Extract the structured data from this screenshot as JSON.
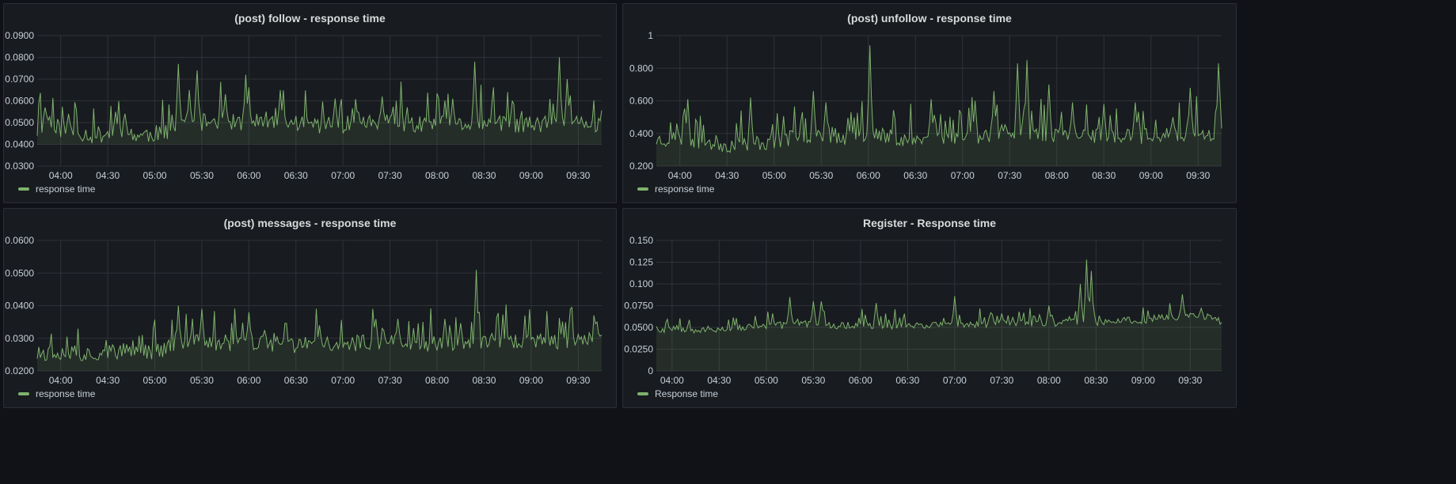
{
  "colors": {
    "series": "#7eb26d",
    "fill": "rgba(126,178,109,0.12)",
    "grid": "#2f3238"
  },
  "chart_data": [
    {
      "type": "line",
      "title": "(post) follow - response time",
      "legend": "response time",
      "time_ticks": [
        "04:00",
        "04:30",
        "05:00",
        "05:30",
        "06:00",
        "06:30",
        "07:00",
        "07:30",
        "08:00",
        "08:30",
        "09:00",
        "09:30"
      ],
      "time_range": [
        "03:45",
        "09:45"
      ],
      "y_ticks": [
        "0.0300",
        "0.0400",
        "0.0500",
        "0.0600",
        "0.0700",
        "0.0800",
        "0.0900"
      ],
      "ylim": [
        0.03,
        0.09
      ],
      "fill_baseline": 0.04,
      "series": [
        {
          "base": 0.046,
          "noise": 0.004,
          "seed": 11,
          "peaks": [
            [
              "03:50",
              0.057
            ],
            [
              "04:05",
              0.054
            ],
            [
              "04:35",
              0.055
            ],
            [
              "05:15",
              0.077
            ],
            [
              "05:22",
              0.065
            ],
            [
              "05:27",
              0.074
            ],
            [
              "05:45",
              0.063
            ],
            [
              "05:58",
              0.072
            ],
            [
              "06:20",
              0.065
            ],
            [
              "06:55",
              0.061
            ],
            [
              "07:25",
              0.062
            ],
            [
              "08:10",
              0.061
            ],
            [
              "08:24",
              0.078
            ],
            [
              "08:48",
              0.06
            ],
            [
              "09:18",
              0.08
            ],
            [
              "09:23",
              0.07
            ]
          ],
          "x": [
            "03:45",
            "03:52",
            "04:00",
            "04:10",
            "04:20",
            "04:30",
            "04:40",
            "04:50",
            "05:00",
            "05:10",
            "05:15",
            "05:20",
            "05:30",
            "05:40",
            "05:50",
            "06:00",
            "06:15",
            "06:30",
            "06:45",
            "07:00",
            "07:15",
            "07:30",
            "07:45",
            "08:00",
            "08:15",
            "08:30",
            "08:45",
            "09:00",
            "09:15",
            "09:30",
            "09:40",
            "09:45"
          ],
          "y": [
            0.046,
            0.052,
            0.047,
            0.046,
            0.044,
            0.045,
            0.046,
            0.044,
            0.045,
            0.046,
            0.05,
            0.049,
            0.05,
            0.051,
            0.05,
            0.05,
            0.049,
            0.05,
            0.049,
            0.049,
            0.05,
            0.05,
            0.049,
            0.049,
            0.049,
            0.05,
            0.049,
            0.049,
            0.049,
            0.05,
            0.049,
            0.049
          ]
        }
      ]
    },
    {
      "type": "line",
      "title": "(post) unfollow - response time",
      "legend": "response time",
      "time_ticks": [
        "04:00",
        "04:30",
        "05:00",
        "05:30",
        "06:00",
        "06:30",
        "07:00",
        "07:30",
        "08:00",
        "08:30",
        "09:00",
        "09:30"
      ],
      "time_range": [
        "03:45",
        "09:45"
      ],
      "y_ticks": [
        "0.200",
        "0.400",
        "0.600",
        "0.800",
        "1"
      ],
      "ylim": [
        0.2,
        1.0
      ],
      "fill_baseline": 0.2,
      "series": [
        {
          "base": 0.36,
          "noise": 0.05,
          "seed": 23,
          "peaks": [
            [
              "04:05",
              0.61
            ],
            [
              "04:45",
              0.62
            ],
            [
              "05:25",
              0.66
            ],
            [
              "05:33",
              0.59
            ],
            [
              "06:01",
              0.94
            ],
            [
              "06:40",
              0.61
            ],
            [
              "07:08",
              0.6
            ],
            [
              "07:20",
              0.66
            ],
            [
              "07:35",
              0.83
            ],
            [
              "07:41",
              0.85
            ],
            [
              "07:55",
              0.7
            ],
            [
              "08:10",
              0.59
            ],
            [
              "08:30",
              0.58
            ],
            [
              "08:50",
              0.59
            ],
            [
              "09:25",
              0.68
            ],
            [
              "09:43",
              0.83
            ]
          ],
          "x": [
            "03:45",
            "04:00",
            "04:15",
            "04:30",
            "04:45",
            "05:00",
            "05:15",
            "05:30",
            "05:45",
            "06:00",
            "06:15",
            "06:30",
            "06:45",
            "07:00",
            "07:15",
            "07:30",
            "07:45",
            "08:00",
            "08:15",
            "08:30",
            "08:45",
            "09:00",
            "09:15",
            "09:30",
            "09:45"
          ],
          "y": [
            0.36,
            0.37,
            0.35,
            0.33,
            0.34,
            0.35,
            0.38,
            0.4,
            0.38,
            0.4,
            0.38,
            0.36,
            0.37,
            0.38,
            0.39,
            0.42,
            0.41,
            0.39,
            0.38,
            0.38,
            0.39,
            0.38,
            0.4,
            0.41,
            0.4
          ]
        }
      ]
    },
    {
      "type": "line",
      "title": "(post) messages - response time",
      "legend": "response time",
      "time_ticks": [
        "04:00",
        "04:30",
        "05:00",
        "05:30",
        "06:00",
        "06:30",
        "07:00",
        "07:30",
        "08:00",
        "08:30",
        "09:00",
        "09:30"
      ],
      "time_range": [
        "03:45",
        "09:45"
      ],
      "y_ticks": [
        "0.0200",
        "0.0300",
        "0.0400",
        "0.0500",
        "0.0600"
      ],
      "ylim": [
        0.02,
        0.06
      ],
      "fill_baseline": 0.02,
      "series": [
        {
          "base": 0.026,
          "noise": 0.0025,
          "seed": 37,
          "peaks": [
            [
              "05:15",
              0.04
            ],
            [
              "05:30",
              0.039
            ],
            [
              "06:00",
              0.038
            ],
            [
              "06:45",
              0.034
            ],
            [
              "07:35",
              0.036
            ],
            [
              "08:05",
              0.036
            ],
            [
              "08:25",
              0.051
            ],
            [
              "09:25",
              0.039
            ],
            [
              "09:42",
              0.035
            ]
          ],
          "x": [
            "03:45",
            "04:00",
            "04:15",
            "04:30",
            "04:45",
            "05:00",
            "05:15",
            "05:30",
            "05:45",
            "06:00",
            "06:15",
            "06:30",
            "06:45",
            "07:00",
            "07:15",
            "07:30",
            "07:45",
            "08:00",
            "08:15",
            "08:30",
            "08:45",
            "09:00",
            "09:15",
            "09:30",
            "09:45"
          ],
          "y": [
            0.025,
            0.026,
            0.025,
            0.026,
            0.026,
            0.026,
            0.028,
            0.029,
            0.028,
            0.029,
            0.028,
            0.028,
            0.028,
            0.028,
            0.029,
            0.029,
            0.029,
            0.028,
            0.029,
            0.029,
            0.029,
            0.029,
            0.029,
            0.03,
            0.029
          ]
        }
      ]
    },
    {
      "type": "line",
      "title": "Register - Response time",
      "legend": "Response time",
      "time_ticks": [
        "04:00",
        "04:30",
        "05:00",
        "05:30",
        "06:00",
        "06:30",
        "07:00",
        "07:30",
        "08:00",
        "08:30",
        "09:00",
        "09:30"
      ],
      "time_range": [
        "03:50",
        "09:50"
      ],
      "y_ticks": [
        "0",
        "0.0250",
        "0.0500",
        "0.0750",
        "0.100",
        "0.125",
        "0.150"
      ],
      "ylim": [
        0,
        0.15
      ],
      "fill_baseline": 0,
      "series": [
        {
          "base": 0.05,
          "noise": 0.004,
          "seed": 53,
          "peaks": [
            [
              "05:15",
              0.085
            ],
            [
              "05:30",
              0.08
            ],
            [
              "05:35",
              0.08
            ],
            [
              "06:10",
              0.078
            ],
            [
              "07:00",
              0.086
            ],
            [
              "07:30",
              0.066
            ],
            [
              "08:00",
              0.075
            ],
            [
              "08:20",
              0.1
            ],
            [
              "08:24",
              0.128
            ],
            [
              "08:27",
              0.115
            ],
            [
              "09:25",
              0.088
            ],
            [
              "09:37",
              0.072
            ]
          ],
          "x": [
            "03:50",
            "04:00",
            "04:15",
            "04:30",
            "04:45",
            "05:00",
            "05:15",
            "05:30",
            "05:45",
            "06:00",
            "06:15",
            "06:30",
            "06:45",
            "07:00",
            "07:15",
            "07:30",
            "07:45",
            "08:00",
            "08:15",
            "08:30",
            "08:45",
            "09:00",
            "09:15",
            "09:30",
            "09:45",
            "09:50"
          ],
          "y": [
            0.046,
            0.05,
            0.047,
            0.048,
            0.05,
            0.051,
            0.053,
            0.054,
            0.052,
            0.053,
            0.052,
            0.052,
            0.053,
            0.053,
            0.053,
            0.054,
            0.055,
            0.055,
            0.056,
            0.056,
            0.058,
            0.058,
            0.062,
            0.063,
            0.062,
            0.056
          ]
        }
      ]
    }
  ]
}
